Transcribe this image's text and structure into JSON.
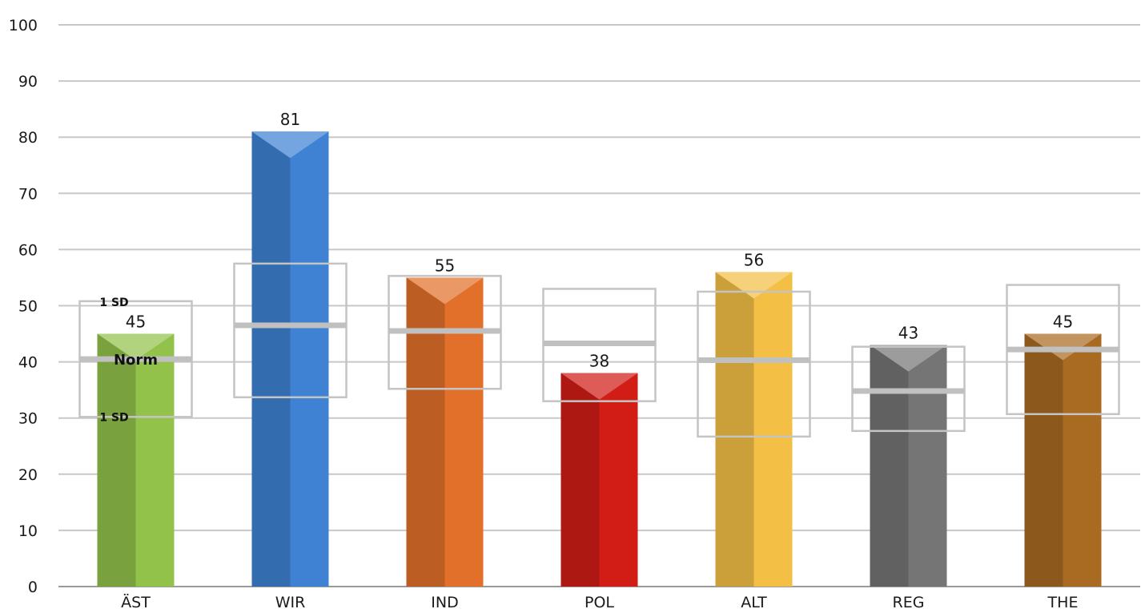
{
  "chart_data": {
    "type": "bar",
    "categories": [
      "ÄST",
      "WIR",
      "IND",
      "POL",
      "ALT",
      "REG",
      "THE"
    ],
    "values": [
      45,
      81,
      55,
      38,
      56,
      43,
      45
    ],
    "norm": [
      40.5,
      46.5,
      45.5,
      43.3,
      40.3,
      34.8,
      42.2
    ],
    "sd_upper": [
      50.8,
      57.5,
      55.3,
      53.0,
      52.5,
      42.7,
      53.7
    ],
    "sd_lower": [
      30.2,
      33.7,
      35.2,
      33.0,
      26.7,
      27.7,
      30.7
    ],
    "colors": [
      "#92c24a",
      "#3f82d4",
      "#e2702a",
      "#d11d16",
      "#f4bf45",
      "#757575",
      "#a96a22"
    ],
    "ylim": [
      0,
      100
    ],
    "yticks": [
      0,
      10,
      20,
      30,
      40,
      50,
      60,
      70,
      80,
      90,
      100
    ],
    "title": "",
    "xlabel": "",
    "ylabel": "",
    "grid": true,
    "annotations": {
      "norm_label": "Norm",
      "sd_upper_label": "1 SD",
      "sd_lower_label": "1 SD"
    }
  }
}
